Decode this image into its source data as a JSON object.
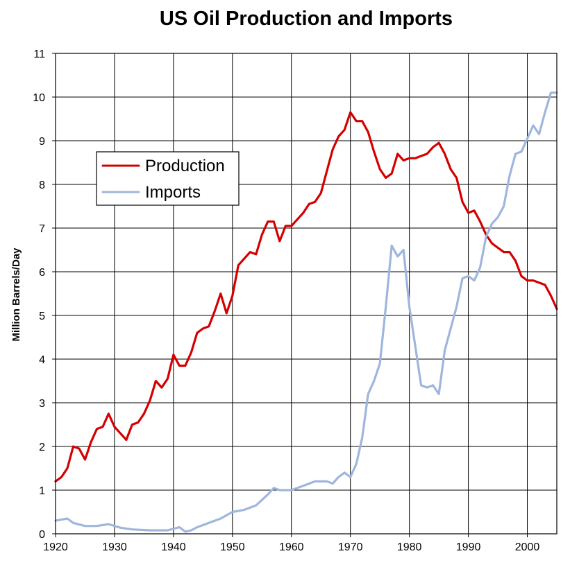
{
  "chart_data": {
    "type": "line",
    "title": "US Oil Production and Imports",
    "xlabel": "",
    "ylabel": "Million Barrels/Day",
    "xlim": [
      1920,
      2005
    ],
    "ylim": [
      0,
      11
    ],
    "x_ticks": [
      "1920",
      "1930",
      "1940",
      "1950",
      "1960",
      "1970",
      "1980",
      "1990",
      "2000"
    ],
    "y_ticks": [
      "0",
      "1",
      "2",
      "3",
      "4",
      "5",
      "6",
      "7",
      "8",
      "9",
      "10",
      "11"
    ],
    "grid": true,
    "legend_position": "upper-left",
    "series": [
      {
        "name": "Production",
        "color": "#d40000",
        "points": [
          [
            1920,
            1.2
          ],
          [
            1921,
            1.3
          ],
          [
            1922,
            1.5
          ],
          [
            1923,
            2.0
          ],
          [
            1924,
            1.95
          ],
          [
            1925,
            1.7
          ],
          [
            1926,
            2.1
          ],
          [
            1927,
            2.4
          ],
          [
            1928,
            2.45
          ],
          [
            1929,
            2.75
          ],
          [
            1930,
            2.45
          ],
          [
            1931,
            2.3
          ],
          [
            1932,
            2.15
          ],
          [
            1933,
            2.5
          ],
          [
            1934,
            2.55
          ],
          [
            1935,
            2.75
          ],
          [
            1936,
            3.05
          ],
          [
            1937,
            3.5
          ],
          [
            1938,
            3.35
          ],
          [
            1939,
            3.55
          ],
          [
            1940,
            4.1
          ],
          [
            1941,
            3.85
          ],
          [
            1942,
            3.85
          ],
          [
            1943,
            4.15
          ],
          [
            1944,
            4.6
          ],
          [
            1945,
            4.7
          ],
          [
            1946,
            4.75
          ],
          [
            1947,
            5.1
          ],
          [
            1948,
            5.5
          ],
          [
            1949,
            5.05
          ],
          [
            1950,
            5.45
          ],
          [
            1951,
            6.15
          ],
          [
            1952,
            6.3
          ],
          [
            1953,
            6.45
          ],
          [
            1954,
            6.4
          ],
          [
            1955,
            6.85
          ],
          [
            1956,
            7.15
          ],
          [
            1957,
            7.15
          ],
          [
            1958,
            6.7
          ],
          [
            1959,
            7.05
          ],
          [
            1960,
            7.05
          ],
          [
            1961,
            7.2
          ],
          [
            1962,
            7.35
          ],
          [
            1963,
            7.55
          ],
          [
            1964,
            7.6
          ],
          [
            1965,
            7.8
          ],
          [
            1966,
            8.3
          ],
          [
            1967,
            8.8
          ],
          [
            1968,
            9.1
          ],
          [
            1969,
            9.25
          ],
          [
            1970,
            9.65
          ],
          [
            1971,
            9.45
          ],
          [
            1972,
            9.45
          ],
          [
            1973,
            9.2
          ],
          [
            1974,
            8.75
          ],
          [
            1975,
            8.35
          ],
          [
            1976,
            8.15
          ],
          [
            1977,
            8.25
          ],
          [
            1978,
            8.7
          ],
          [
            1979,
            8.55
          ],
          [
            1980,
            8.6
          ],
          [
            1981,
            8.6
          ],
          [
            1982,
            8.65
          ],
          [
            1983,
            8.7
          ],
          [
            1984,
            8.85
          ],
          [
            1985,
            8.95
          ],
          [
            1986,
            8.7
          ],
          [
            1987,
            8.35
          ],
          [
            1988,
            8.15
          ],
          [
            1989,
            7.6
          ],
          [
            1990,
            7.35
          ],
          [
            1991,
            7.4
          ],
          [
            1992,
            7.15
          ],
          [
            1993,
            6.85
          ],
          [
            1994,
            6.65
          ],
          [
            1995,
            6.55
          ],
          [
            1996,
            6.45
          ],
          [
            1997,
            6.45
          ],
          [
            1998,
            6.25
          ],
          [
            1999,
            5.9
          ],
          [
            2000,
            5.8
          ],
          [
            2001,
            5.8
          ],
          [
            2002,
            5.75
          ],
          [
            2003,
            5.7
          ],
          [
            2004,
            5.45
          ],
          [
            2005,
            5.15
          ]
        ]
      },
      {
        "name": "Imports",
        "color": "#9fb6dc",
        "points": [
          [
            1920,
            0.3
          ],
          [
            1922,
            0.35
          ],
          [
            1923,
            0.25
          ],
          [
            1925,
            0.18
          ],
          [
            1927,
            0.18
          ],
          [
            1929,
            0.22
          ],
          [
            1931,
            0.14
          ],
          [
            1933,
            0.1
          ],
          [
            1936,
            0.08
          ],
          [
            1939,
            0.08
          ],
          [
            1941,
            0.15
          ],
          [
            1942,
            0.05
          ],
          [
            1943,
            0.08
          ],
          [
            1944,
            0.15
          ],
          [
            1946,
            0.25
          ],
          [
            1948,
            0.35
          ],
          [
            1950,
            0.5
          ],
          [
            1952,
            0.55
          ],
          [
            1954,
            0.65
          ],
          [
            1956,
            0.9
          ],
          [
            1957,
            1.05
          ],
          [
            1958,
            1.0
          ],
          [
            1960,
            1.0
          ],
          [
            1962,
            1.1
          ],
          [
            1964,
            1.2
          ],
          [
            1966,
            1.2
          ],
          [
            1967,
            1.15
          ],
          [
            1968,
            1.3
          ],
          [
            1969,
            1.4
          ],
          [
            1970,
            1.3
          ],
          [
            1971,
            1.6
          ],
          [
            1972,
            2.2
          ],
          [
            1973,
            3.2
          ],
          [
            1974,
            3.5
          ],
          [
            1975,
            3.9
          ],
          [
            1976,
            5.2
          ],
          [
            1977,
            6.6
          ],
          [
            1978,
            6.35
          ],
          [
            1979,
            6.5
          ],
          [
            1980,
            5.2
          ],
          [
            1981,
            4.3
          ],
          [
            1982,
            3.4
          ],
          [
            1983,
            3.35
          ],
          [
            1984,
            3.4
          ],
          [
            1985,
            3.2
          ],
          [
            1986,
            4.2
          ],
          [
            1987,
            4.7
          ],
          [
            1988,
            5.2
          ],
          [
            1989,
            5.85
          ],
          [
            1990,
            5.9
          ],
          [
            1991,
            5.8
          ],
          [
            1992,
            6.1
          ],
          [
            1993,
            6.8
          ],
          [
            1994,
            7.1
          ],
          [
            1995,
            7.25
          ],
          [
            1996,
            7.5
          ],
          [
            1997,
            8.2
          ],
          [
            1998,
            8.7
          ],
          [
            1999,
            8.75
          ],
          [
            2000,
            9.05
          ],
          [
            2001,
            9.35
          ],
          [
            2002,
            9.15
          ],
          [
            2003,
            9.65
          ],
          [
            2004,
            10.1
          ],
          [
            2005,
            10.1
          ]
        ]
      }
    ]
  }
}
